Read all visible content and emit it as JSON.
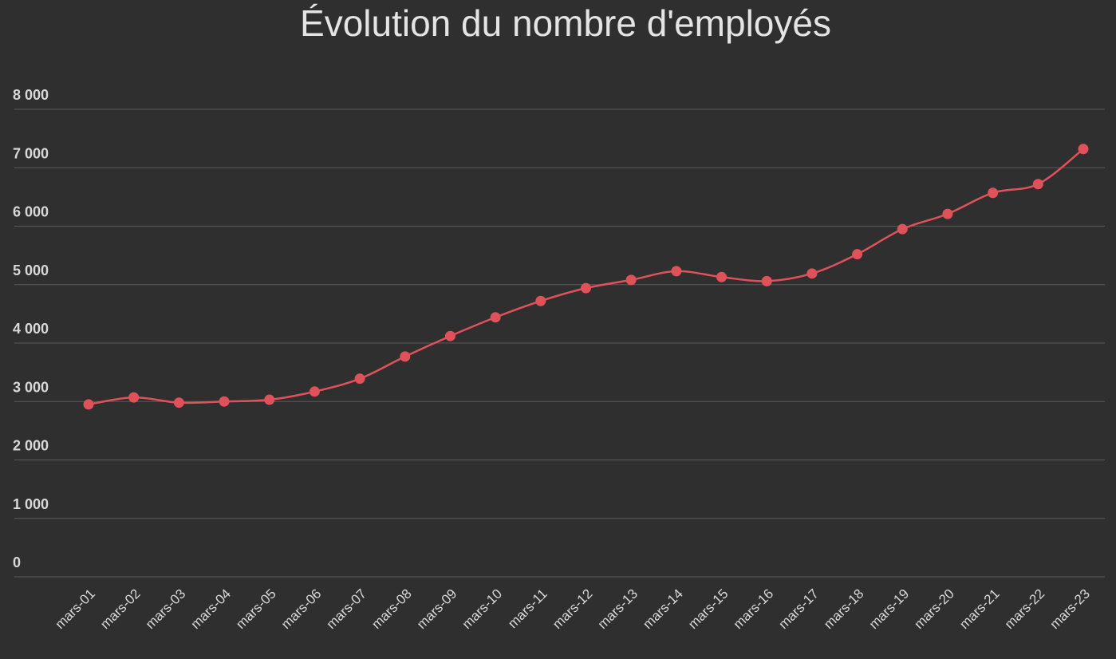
{
  "chart_data": {
    "type": "line",
    "title": "Évolution du nombre d'employés",
    "categories": [
      "mars-01",
      "mars-02",
      "mars-03",
      "mars-04",
      "mars-05",
      "mars-06",
      "mars-07",
      "mars-08",
      "mars-09",
      "mars-10",
      "mars-11",
      "mars-12",
      "mars-13",
      "mars-14",
      "mars-15",
      "mars-16",
      "mars-17",
      "mars-18",
      "mars-19",
      "mars-20",
      "mars-21",
      "mars-22",
      "mars-23"
    ],
    "values": [
      2950,
      3070,
      2980,
      3000,
      3030,
      3170,
      3390,
      3770,
      4120,
      4440,
      4720,
      4940,
      5080,
      5230,
      5130,
      5060,
      5190,
      5520,
      5950,
      6210,
      6570,
      6720,
      7320
    ],
    "color": "#e0525a",
    "ylim": [
      0,
      8000
    ],
    "yticks": [
      {
        "value": 0,
        "label": "0"
      },
      {
        "value": 1000,
        "label": "1 000"
      },
      {
        "value": 2000,
        "label": "2 000"
      },
      {
        "value": 3000,
        "label": "3 000"
      },
      {
        "value": 4000,
        "label": "4 000"
      },
      {
        "value": 5000,
        "label": "5 000"
      },
      {
        "value": 6000,
        "label": "6 000"
      },
      {
        "value": 7000,
        "label": "7 000"
      },
      {
        "value": 8000,
        "label": "8 000"
      }
    ],
    "grid": true
  }
}
